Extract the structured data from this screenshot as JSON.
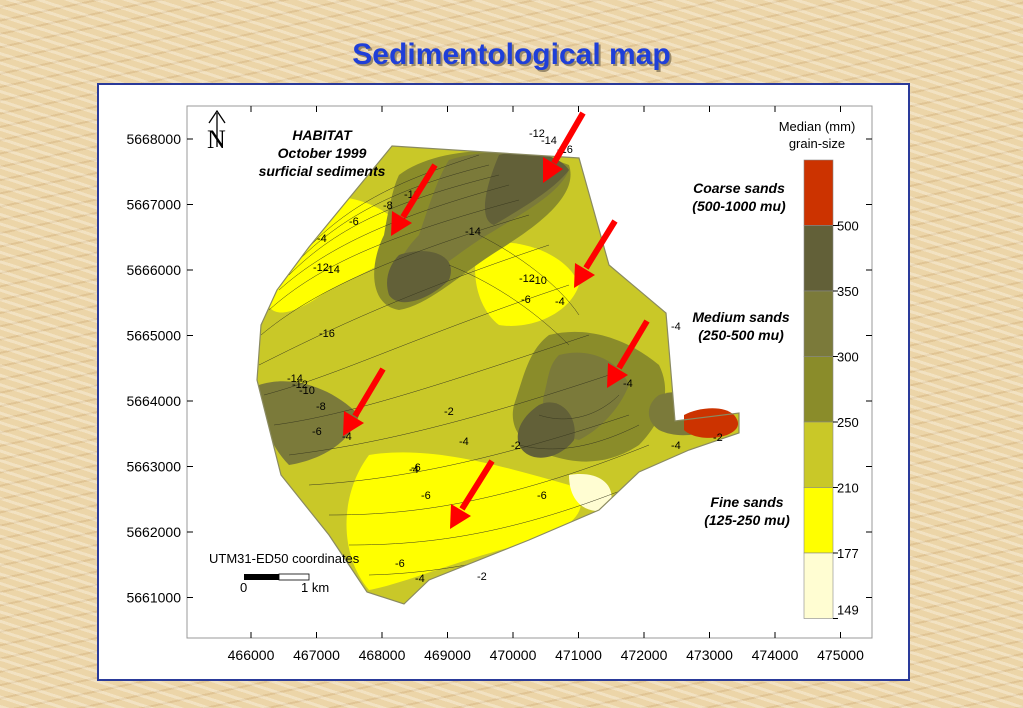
{
  "title": "Sedimentological map",
  "map_note": [
    "HABITAT",
    "October 1999",
    "surficial sediments"
  ],
  "y_axis": {
    "ticks": [
      "5668000",
      "5667000",
      "5666000",
      "5665000",
      "5664000",
      "5663000",
      "5662000",
      "5661000"
    ],
    "values": [
      5668000,
      5667000,
      5666000,
      5665000,
      5664000,
      5663000,
      5662000,
      5661000
    ]
  },
  "x_axis": {
    "ticks": [
      "466000",
      "467000",
      "468000",
      "469000",
      "470000",
      "471000",
      "472000",
      "473000",
      "474000",
      "475000"
    ],
    "values": [
      466000,
      467000,
      468000,
      469000,
      470000,
      471000,
      472000,
      473000,
      474000,
      475000
    ]
  },
  "coordinates_label": "UTM31-ED50 coordinates",
  "scale_bar": {
    "start": "0",
    "end": "1 km"
  },
  "legend": {
    "title_line1": "Median (mm)",
    "title_line2": "grain-size",
    "classes": [
      {
        "color": "#cc3300"
      },
      {
        "color": "#626038"
      },
      {
        "color": "#7b7a3a"
      },
      {
        "color": "#8a8c2a"
      },
      {
        "color": "#c9c828"
      },
      {
        "color": "#ffff00"
      },
      {
        "color": "#fffdd2"
      }
    ],
    "breaks": [
      "500",
      "350",
      "300",
      "250",
      "210",
      "177",
      "149"
    ],
    "groups": [
      {
        "line1": "Coarse sands",
        "line2": "(500-1000 mu)"
      },
      {
        "line1": "Medium sands",
        "line2": "(250-500 mu)"
      },
      {
        "line1": "Fine sands",
        "line2": "(125-250 mu)"
      }
    ]
  },
  "contour_labels": [
    "-12",
    "-14",
    "-16",
    "-6",
    "-8",
    "-10",
    "-4",
    "-12",
    "-14",
    "-14",
    "-12",
    "-10",
    "-6",
    "-4",
    "-16",
    "-14",
    "-12",
    "-10",
    "-8",
    "-6",
    "-4",
    "-2",
    "-4",
    "-2",
    "-4",
    "-4",
    "-4",
    "-2",
    "-4",
    "-6",
    "-6",
    "-6",
    "-6",
    "-4",
    "-2"
  ],
  "north_arrow_label": "N",
  "colors": {
    "title": "#1f3fd8",
    "frame_border": "#2a3a9a",
    "arrow": "#ff0000"
  }
}
